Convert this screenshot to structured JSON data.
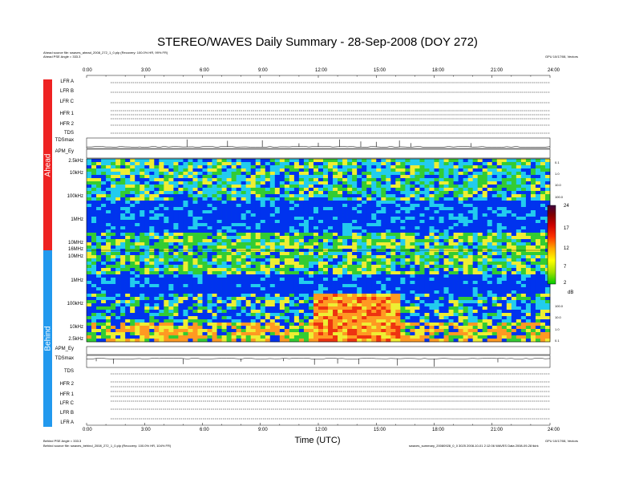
{
  "title": "STEREO/WAVES Daily Summary - 28-Sep-2008 (DOY 272)",
  "header": {
    "ahead_source": "Ahead source file: swaves_ahead_2008_272_1_0.plp (Recovery: 100.0% HR, 99% FR)",
    "ahead_angle": "Ahead PSE Angle = 333.3",
    "right_note": "GPU 10/17/08, Vectors"
  },
  "footer": {
    "behind_angle": "Behind PSE Angle = 333.3",
    "behind_source": "Behind source file: swaves_behind_2008_272_1_0.plp (Recovery: 100.0% HR, 104% FR)",
    "right_note": "GPU 10/17/08, Vectors",
    "right_note2": "swaves_summary_20080928_0_0 3025 2008-10-01 2:12:06 WAVES Data 2008-09-28 tkirk",
    "xlabel": "Time (UTC)"
  },
  "sidebar": {
    "ahead": "Ahead",
    "behind": "Behind"
  },
  "chart_data": {
    "type": "heatmap",
    "title": "STEREO/WAVES Daily Summary - 28-Sep-2008 (DOY 272)",
    "xlabel": "Time (UTC)",
    "x_ticks": [
      "0:00",
      "3:00",
      "6:00",
      "9:00",
      "12:00",
      "15:00",
      "18:00",
      "21:00",
      "24:00"
    ],
    "xlim": [
      0,
      24
    ],
    "ahead_panels": [
      "LFR A",
      "LFR B",
      "LFR C",
      "HFR 1",
      "HFR 2",
      "TDS",
      "TDSmax",
      "APM_Ey"
    ],
    "behind_panels": [
      "APM_Ey",
      "TDSmax",
      "TDS",
      "HFR 2",
      "HFR 1",
      "LFR C",
      "LFR B",
      "LFR A"
    ],
    "ahead_freq_ticks": [
      "2.5kHz",
      "10kHz",
      "100kHz",
      "1MHz",
      "10MHz",
      "16MHz"
    ],
    "behind_freq_ticks": [
      "10MHz",
      "1MHz",
      "100kHz",
      "10kHz",
      "2.5kHz"
    ],
    "right_ticks_ahead": [
      "0.1",
      "1.0",
      "10.0",
      "100.0"
    ],
    "right_ticks_behind": [
      "100.0",
      "10.0",
      "1.0",
      "0.1"
    ],
    "colorbar": {
      "ticks": [
        "24",
        "17",
        "12",
        "7",
        "2"
      ],
      "unit": "dB",
      "range": [
        2,
        24
      ]
    },
    "colorbar_colors": [
      "#00cc00",
      "#a0e000",
      "#ffff00",
      "#ffaa00",
      "#ff3300",
      "#cc0000",
      "#800000",
      "#400040"
    ],
    "spectrogram_colors": {
      "blue": "#0033ee",
      "cyan": "#22ccee",
      "green": "#33cc33",
      "yellow": "#eeee33",
      "orange": "#ff9922",
      "red": "#ee3311"
    },
    "sidebar_colors": {
      "ahead": "#ee2222",
      "behind": "#2299ee"
    },
    "tdsmax_ahead_spike_hours": [
      5.2,
      7.3,
      9.1,
      11.0,
      12.0,
      13.1,
      14.2,
      15.0,
      16.2,
      16.8,
      19.9
    ],
    "tdsmax_behind_spike_hours": [
      0.5,
      1.4,
      5.0,
      8.0,
      10.2,
      11.8,
      13.0,
      14.1,
      16.1,
      18.0,
      21.3
    ]
  }
}
